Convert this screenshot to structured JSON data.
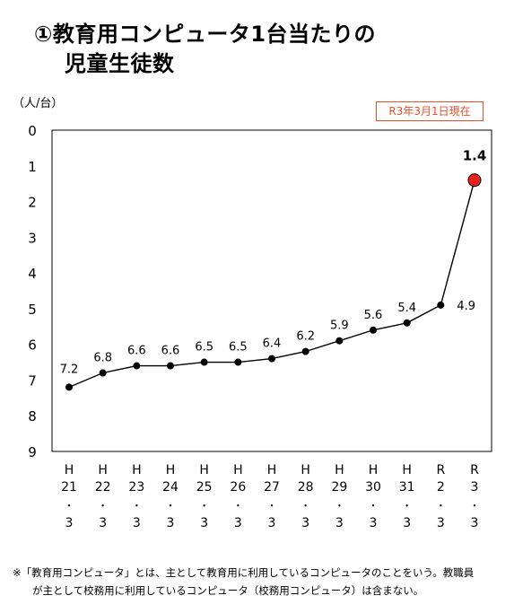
{
  "title": {
    "line1": "①教育用コンピュータ1台当たりの",
    "line2": "児童生徒数"
  },
  "unit_label": "（人/台）",
  "date_badge": "R3年3月1日現在",
  "note": {
    "line1": "※「教育用コンピュータ」とは、主として教育用に利用しているコンピュータのことをいう。教職員",
    "line2": "が主として校務用に利用しているコンピュータ（校務用コンピュータ）は含まない。"
  },
  "colors": {
    "line": "#000000",
    "point": "#000000",
    "highlight_point": "#e8231e",
    "badge": "#e8502b"
  },
  "chart_data": {
    "type": "line",
    "y_axis_inverted": true,
    "ylim": [
      0,
      9
    ],
    "y_ticks": [
      "0",
      "1",
      "2",
      "3",
      "4",
      "5",
      "6",
      "7",
      "8",
      "9"
    ],
    "categories": [
      [
        "H",
        "21",
        "・",
        "3"
      ],
      [
        "H",
        "22",
        "・",
        "3"
      ],
      [
        "H",
        "23",
        "・",
        "3"
      ],
      [
        "H",
        "24",
        "・",
        "3"
      ],
      [
        "H",
        "25",
        "・",
        "3"
      ],
      [
        "H",
        "26",
        "・",
        "3"
      ],
      [
        "H",
        "27",
        "・",
        "3"
      ],
      [
        "H",
        "28",
        "・",
        "3"
      ],
      [
        "H",
        "29",
        "・",
        "3"
      ],
      [
        "H",
        "30",
        "・",
        "3"
      ],
      [
        "H",
        "31",
        "・",
        "3"
      ],
      [
        "R",
        "2",
        "・",
        "3"
      ],
      [
        "R",
        "3",
        "・",
        "3"
      ]
    ],
    "values": [
      7.2,
      6.8,
      6.6,
      6.6,
      6.5,
      6.5,
      6.4,
      6.2,
      5.9,
      5.6,
      5.4,
      4.9,
      1.4
    ],
    "labels": [
      "7.2",
      "6.8",
      "6.6",
      "6.6",
      "6.5",
      "6.5",
      "6.4",
      "6.2",
      "5.9",
      "5.6",
      "5.4",
      "4.9",
      "1.4"
    ],
    "highlight_index": 12,
    "grid": false,
    "legend": "none"
  }
}
